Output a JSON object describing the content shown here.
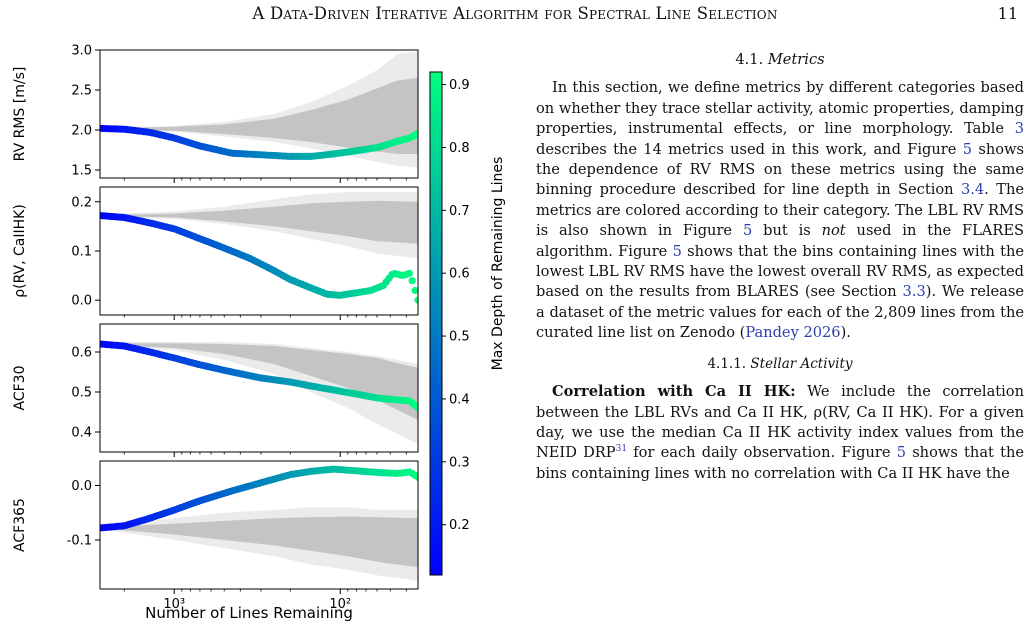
{
  "header": {
    "running_title": "A Data-Driven Iterative Algorithm for Spectral Line Selection",
    "page_number": "11"
  },
  "colors": {
    "colormap_low": "#0000ff",
    "colormap_high": "#00ff7f",
    "band_outer": "#ebebeb",
    "band_inner": "#c4c4c4",
    "link": "#2a3fb0"
  },
  "chart_data": {
    "type": "scatter",
    "shared_x": {
      "label": "Number of Lines Remaining",
      "scale": "log",
      "inverted": true,
      "domain": [
        2800,
        34
      ],
      "ticks": [
        {
          "value": 1000,
          "label": "10³"
        },
        {
          "value": 100,
          "label": "10²"
        }
      ]
    },
    "colorbar": {
      "label": "Max Depth of Remaining Lines",
      "range": [
        0.12,
        0.92
      ],
      "ticks": [
        0.2,
        0.3,
        0.4,
        0.5,
        0.6,
        0.7,
        0.8,
        0.9
      ]
    },
    "panels": [
      {
        "ylabel": "RV RMS [m/s]",
        "ylim": [
          1.4,
          3.0
        ],
        "yticks": [
          1.5,
          2.0,
          2.5,
          3.0
        ],
        "series_points": [
          [
            2800,
            2.02
          ],
          [
            2000,
            2.01
          ],
          [
            1400,
            1.97
          ],
          [
            1000,
            1.9
          ],
          [
            700,
            1.8
          ],
          [
            450,
            1.71
          ],
          [
            300,
            1.69
          ],
          [
            200,
            1.67
          ],
          [
            150,
            1.67
          ],
          [
            110,
            1.7
          ],
          [
            80,
            1.74
          ],
          [
            60,
            1.78
          ],
          [
            45,
            1.86
          ],
          [
            38,
            1.9
          ],
          [
            34,
            1.96
          ]
        ],
        "band_outer_upper": [
          [
            2800,
            2.03
          ],
          [
            1000,
            2.05
          ],
          [
            500,
            2.1
          ],
          [
            250,
            2.2
          ],
          [
            150,
            2.35
          ],
          [
            90,
            2.55
          ],
          [
            60,
            2.75
          ],
          [
            45,
            2.95
          ],
          [
            34,
            2.98
          ]
        ],
        "band_outer_lower": [
          [
            2800,
            2.01
          ],
          [
            1000,
            1.98
          ],
          [
            500,
            1.92
          ],
          [
            250,
            1.85
          ],
          [
            150,
            1.77
          ],
          [
            90,
            1.68
          ],
          [
            60,
            1.6
          ],
          [
            45,
            1.55
          ],
          [
            34,
            1.53
          ]
        ],
        "band_inner_upper": [
          [
            2800,
            2.02
          ],
          [
            1000,
            2.04
          ],
          [
            500,
            2.07
          ],
          [
            250,
            2.14
          ],
          [
            150,
            2.25
          ],
          [
            90,
            2.38
          ],
          [
            60,
            2.52
          ],
          [
            45,
            2.62
          ],
          [
            34,
            2.65
          ]
        ],
        "band_inner_lower": [
          [
            2800,
            2.0
          ],
          [
            1000,
            1.99
          ],
          [
            500,
            1.95
          ],
          [
            250,
            1.9
          ],
          [
            150,
            1.85
          ],
          [
            90,
            1.78
          ],
          [
            60,
            1.73
          ],
          [
            45,
            1.7
          ],
          [
            34,
            1.7
          ]
        ]
      },
      {
        "ylabel": "ρ(RV, CaIIHK)",
        "ylim": [
          -0.03,
          0.23
        ],
        "yticks": [
          0.0,
          0.1,
          0.2
        ],
        "series_points": [
          [
            2800,
            0.172
          ],
          [
            2000,
            0.168
          ],
          [
            1400,
            0.157
          ],
          [
            1000,
            0.145
          ],
          [
            700,
            0.125
          ],
          [
            500,
            0.106
          ],
          [
            350,
            0.085
          ],
          [
            250,
            0.06
          ],
          [
            200,
            0.042
          ],
          [
            150,
            0.025
          ],
          [
            120,
            0.012
          ],
          [
            100,
            0.01
          ],
          [
            80,
            0.015
          ],
          [
            65,
            0.02
          ],
          [
            55,
            0.03
          ],
          [
            48,
            0.055
          ],
          [
            42,
            0.05
          ],
          [
            38,
            0.055
          ],
          [
            34,
            0.0
          ]
        ],
        "band_outer_upper": [
          [
            2800,
            0.175
          ],
          [
            1000,
            0.18
          ],
          [
            500,
            0.19
          ],
          [
            250,
            0.205
          ],
          [
            150,
            0.215
          ],
          [
            90,
            0.22
          ],
          [
            60,
            0.22
          ],
          [
            34,
            0.22
          ]
        ],
        "band_outer_lower": [
          [
            2800,
            0.17
          ],
          [
            1000,
            0.165
          ],
          [
            500,
            0.155
          ],
          [
            250,
            0.14
          ],
          [
            150,
            0.125
          ],
          [
            90,
            0.11
          ],
          [
            60,
            0.095
          ],
          [
            34,
            0.085
          ]
        ],
        "band_inner_upper": [
          [
            2800,
            0.173
          ],
          [
            1000,
            0.176
          ],
          [
            500,
            0.182
          ],
          [
            250,
            0.19
          ],
          [
            150,
            0.197
          ],
          [
            90,
            0.2
          ],
          [
            60,
            0.202
          ],
          [
            34,
            0.2
          ]
        ],
        "band_inner_lower": [
          [
            2800,
            0.171
          ],
          [
            1000,
            0.168
          ],
          [
            500,
            0.16
          ],
          [
            250,
            0.15
          ],
          [
            150,
            0.14
          ],
          [
            90,
            0.13
          ],
          [
            60,
            0.12
          ],
          [
            34,
            0.115
          ]
        ]
      },
      {
        "ylabel": "ACF30",
        "ylim": [
          0.35,
          0.67
        ],
        "yticks": [
          0.4,
          0.5,
          0.6
        ],
        "series_points": [
          [
            2800,
            0.62
          ],
          [
            2000,
            0.615
          ],
          [
            1400,
            0.6
          ],
          [
            1000,
            0.585
          ],
          [
            700,
            0.568
          ],
          [
            450,
            0.55
          ],
          [
            300,
            0.535
          ],
          [
            200,
            0.525
          ],
          [
            150,
            0.515
          ],
          [
            110,
            0.505
          ],
          [
            80,
            0.495
          ],
          [
            60,
            0.485
          ],
          [
            45,
            0.48
          ],
          [
            38,
            0.478
          ],
          [
            34,
            0.46
          ]
        ],
        "band_outer_upper": [
          [
            2800,
            0.625
          ],
          [
            1000,
            0.625
          ],
          [
            500,
            0.625
          ],
          [
            250,
            0.62
          ],
          [
            150,
            0.61
          ],
          [
            90,
            0.6
          ],
          [
            60,
            0.59
          ],
          [
            34,
            0.57
          ]
        ],
        "band_outer_lower": [
          [
            2800,
            0.615
          ],
          [
            1000,
            0.605
          ],
          [
            500,
            0.58
          ],
          [
            250,
            0.545
          ],
          [
            150,
            0.5
          ],
          [
            90,
            0.46
          ],
          [
            60,
            0.42
          ],
          [
            34,
            0.37
          ]
        ],
        "band_inner_upper": [
          [
            2800,
            0.622
          ],
          [
            1000,
            0.622
          ],
          [
            500,
            0.62
          ],
          [
            250,
            0.615
          ],
          [
            150,
            0.605
          ],
          [
            90,
            0.595
          ],
          [
            60,
            0.585
          ],
          [
            34,
            0.56
          ]
        ],
        "band_inner_lower": [
          [
            2800,
            0.618
          ],
          [
            1000,
            0.61
          ],
          [
            500,
            0.595
          ],
          [
            250,
            0.57
          ],
          [
            150,
            0.54
          ],
          [
            90,
            0.51
          ],
          [
            60,
            0.48
          ],
          [
            34,
            0.43
          ]
        ]
      },
      {
        "ylabel": "ACF365",
        "ylim": [
          -0.19,
          0.045
        ],
        "yticks": [
          -0.1,
          0.0
        ],
        "series_points": [
          [
            2800,
            -0.078
          ],
          [
            2000,
            -0.074
          ],
          [
            1400,
            -0.06
          ],
          [
            1000,
            -0.045
          ],
          [
            700,
            -0.028
          ],
          [
            450,
            -0.01
          ],
          [
            300,
            0.005
          ],
          [
            200,
            0.02
          ],
          [
            150,
            0.026
          ],
          [
            110,
            0.03
          ],
          [
            80,
            0.027
          ],
          [
            60,
            0.024
          ],
          [
            45,
            0.022
          ],
          [
            38,
            0.025
          ],
          [
            34,
            0.015
          ]
        ],
        "band_outer_upper": [
          [
            2800,
            -0.075
          ],
          [
            1000,
            -0.06
          ],
          [
            500,
            -0.05
          ],
          [
            250,
            -0.045
          ],
          [
            150,
            -0.04
          ],
          [
            90,
            -0.04
          ],
          [
            60,
            -0.045
          ],
          [
            34,
            -0.045
          ]
        ],
        "band_outer_lower": [
          [
            2800,
            -0.08
          ],
          [
            1000,
            -0.1
          ],
          [
            500,
            -0.115
          ],
          [
            250,
            -0.13
          ],
          [
            150,
            -0.145
          ],
          [
            90,
            -0.155
          ],
          [
            60,
            -0.165
          ],
          [
            34,
            -0.175
          ]
        ],
        "band_inner_upper": [
          [
            2800,
            -0.077
          ],
          [
            1000,
            -0.07
          ],
          [
            500,
            -0.065
          ],
          [
            250,
            -0.06
          ],
          [
            150,
            -0.058
          ],
          [
            90,
            -0.057
          ],
          [
            60,
            -0.058
          ],
          [
            34,
            -0.06
          ]
        ],
        "band_inner_lower": [
          [
            2800,
            -0.079
          ],
          [
            1000,
            -0.09
          ],
          [
            500,
            -0.1
          ],
          [
            250,
            -0.11
          ],
          [
            150,
            -0.12
          ],
          [
            90,
            -0.13
          ],
          [
            60,
            -0.14
          ],
          [
            34,
            -0.15
          ]
        ]
      }
    ]
  },
  "text": {
    "section_number": "4.1.",
    "section_title": "Metrics",
    "para1_parts": [
      "In this section, we define metrics by different categories based on whether they trace stellar activity, atomic properties, damping properties, instrumental effects, or line morphology. Table ",
      "3",
      " describes the 14 metrics used in this work, and Figure ",
      "5",
      " shows the dependence of RV RMS on these metrics using the same binning procedure described for line depth in Section ",
      "3.4",
      ". The metrics are colored according to their category. The LBL RV RMS is also shown in Figure ",
      "5",
      " but is ",
      "not",
      " used in the FLARES algorithm. Figure ",
      "5",
      " shows that the bins containing lines with the lowest LBL RV RMS have the lowest overall RV RMS, as expected based on the results from BLARES (see Section ",
      "3.3",
      "). We release a dataset of the metric values for each of the 2,809 lines from the curated line list on Zenodo (",
      "Pandey 2026",
      ")."
    ],
    "subsection_number": "4.1.1.",
    "subsection_title": "Stellar Activity",
    "para2_bold": "Correlation with Ca II HK:",
    "para2_parts": [
      " We include the correlation between the LBL RVs and Ca II HK, ρ(RV, Ca II HK). For a given day, we use the median Ca II HK activity index values from the NEID DRP",
      "31",
      " for each daily observation. Figure ",
      "5",
      " shows that the bins containing lines with no correlation with Ca II HK have the"
    ]
  }
}
